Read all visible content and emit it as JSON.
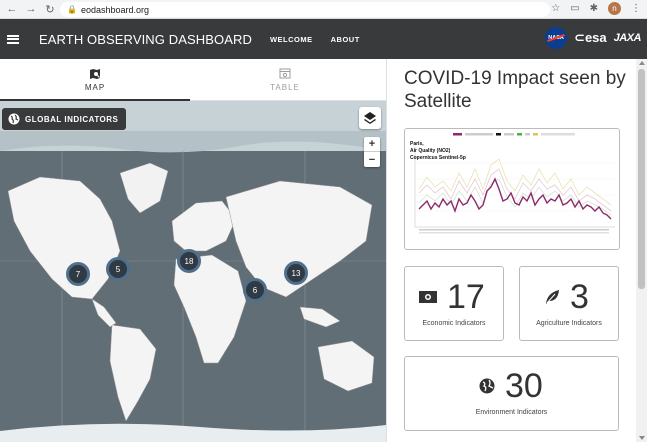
{
  "browser": {
    "url": "eodashboard.org",
    "profile_initial": "n"
  },
  "appbar": {
    "title": "EARTH OBSERVING DASHBOARD",
    "links": [
      "WELCOME",
      "ABOUT"
    ],
    "partners": {
      "nasa": "NASA",
      "esa": "esa",
      "jaxa": "JAXA"
    }
  },
  "tabs": [
    {
      "label": "MAP",
      "icon": "map-search-icon",
      "active": true
    },
    {
      "label": "TABLE",
      "icon": "table-search-icon",
      "active": false
    }
  ],
  "map": {
    "global_button": "GLOBAL INDICATORS",
    "zoom_in": "+",
    "zoom_out": "−",
    "clusters": [
      "7",
      "5",
      "18",
      "6",
      "13"
    ]
  },
  "panel": {
    "title": "COVID-19 Impact seen by Satellite",
    "chart_caption": [
      "Paris,",
      "Air Quality (NO2)",
      "Copernicus Sentinel-5p"
    ],
    "indicators": [
      {
        "count": "17",
        "label": "Economic Indicators",
        "icon": "money-icon"
      },
      {
        "count": "3",
        "label": "Agriculture Indicators",
        "icon": "leaf-icon"
      },
      {
        "count": "30",
        "label": "Environment Indicators",
        "icon": "globe-icon"
      }
    ]
  },
  "colors": {
    "appbar": "#383a3c",
    "series_main": "#8e2a6b"
  }
}
